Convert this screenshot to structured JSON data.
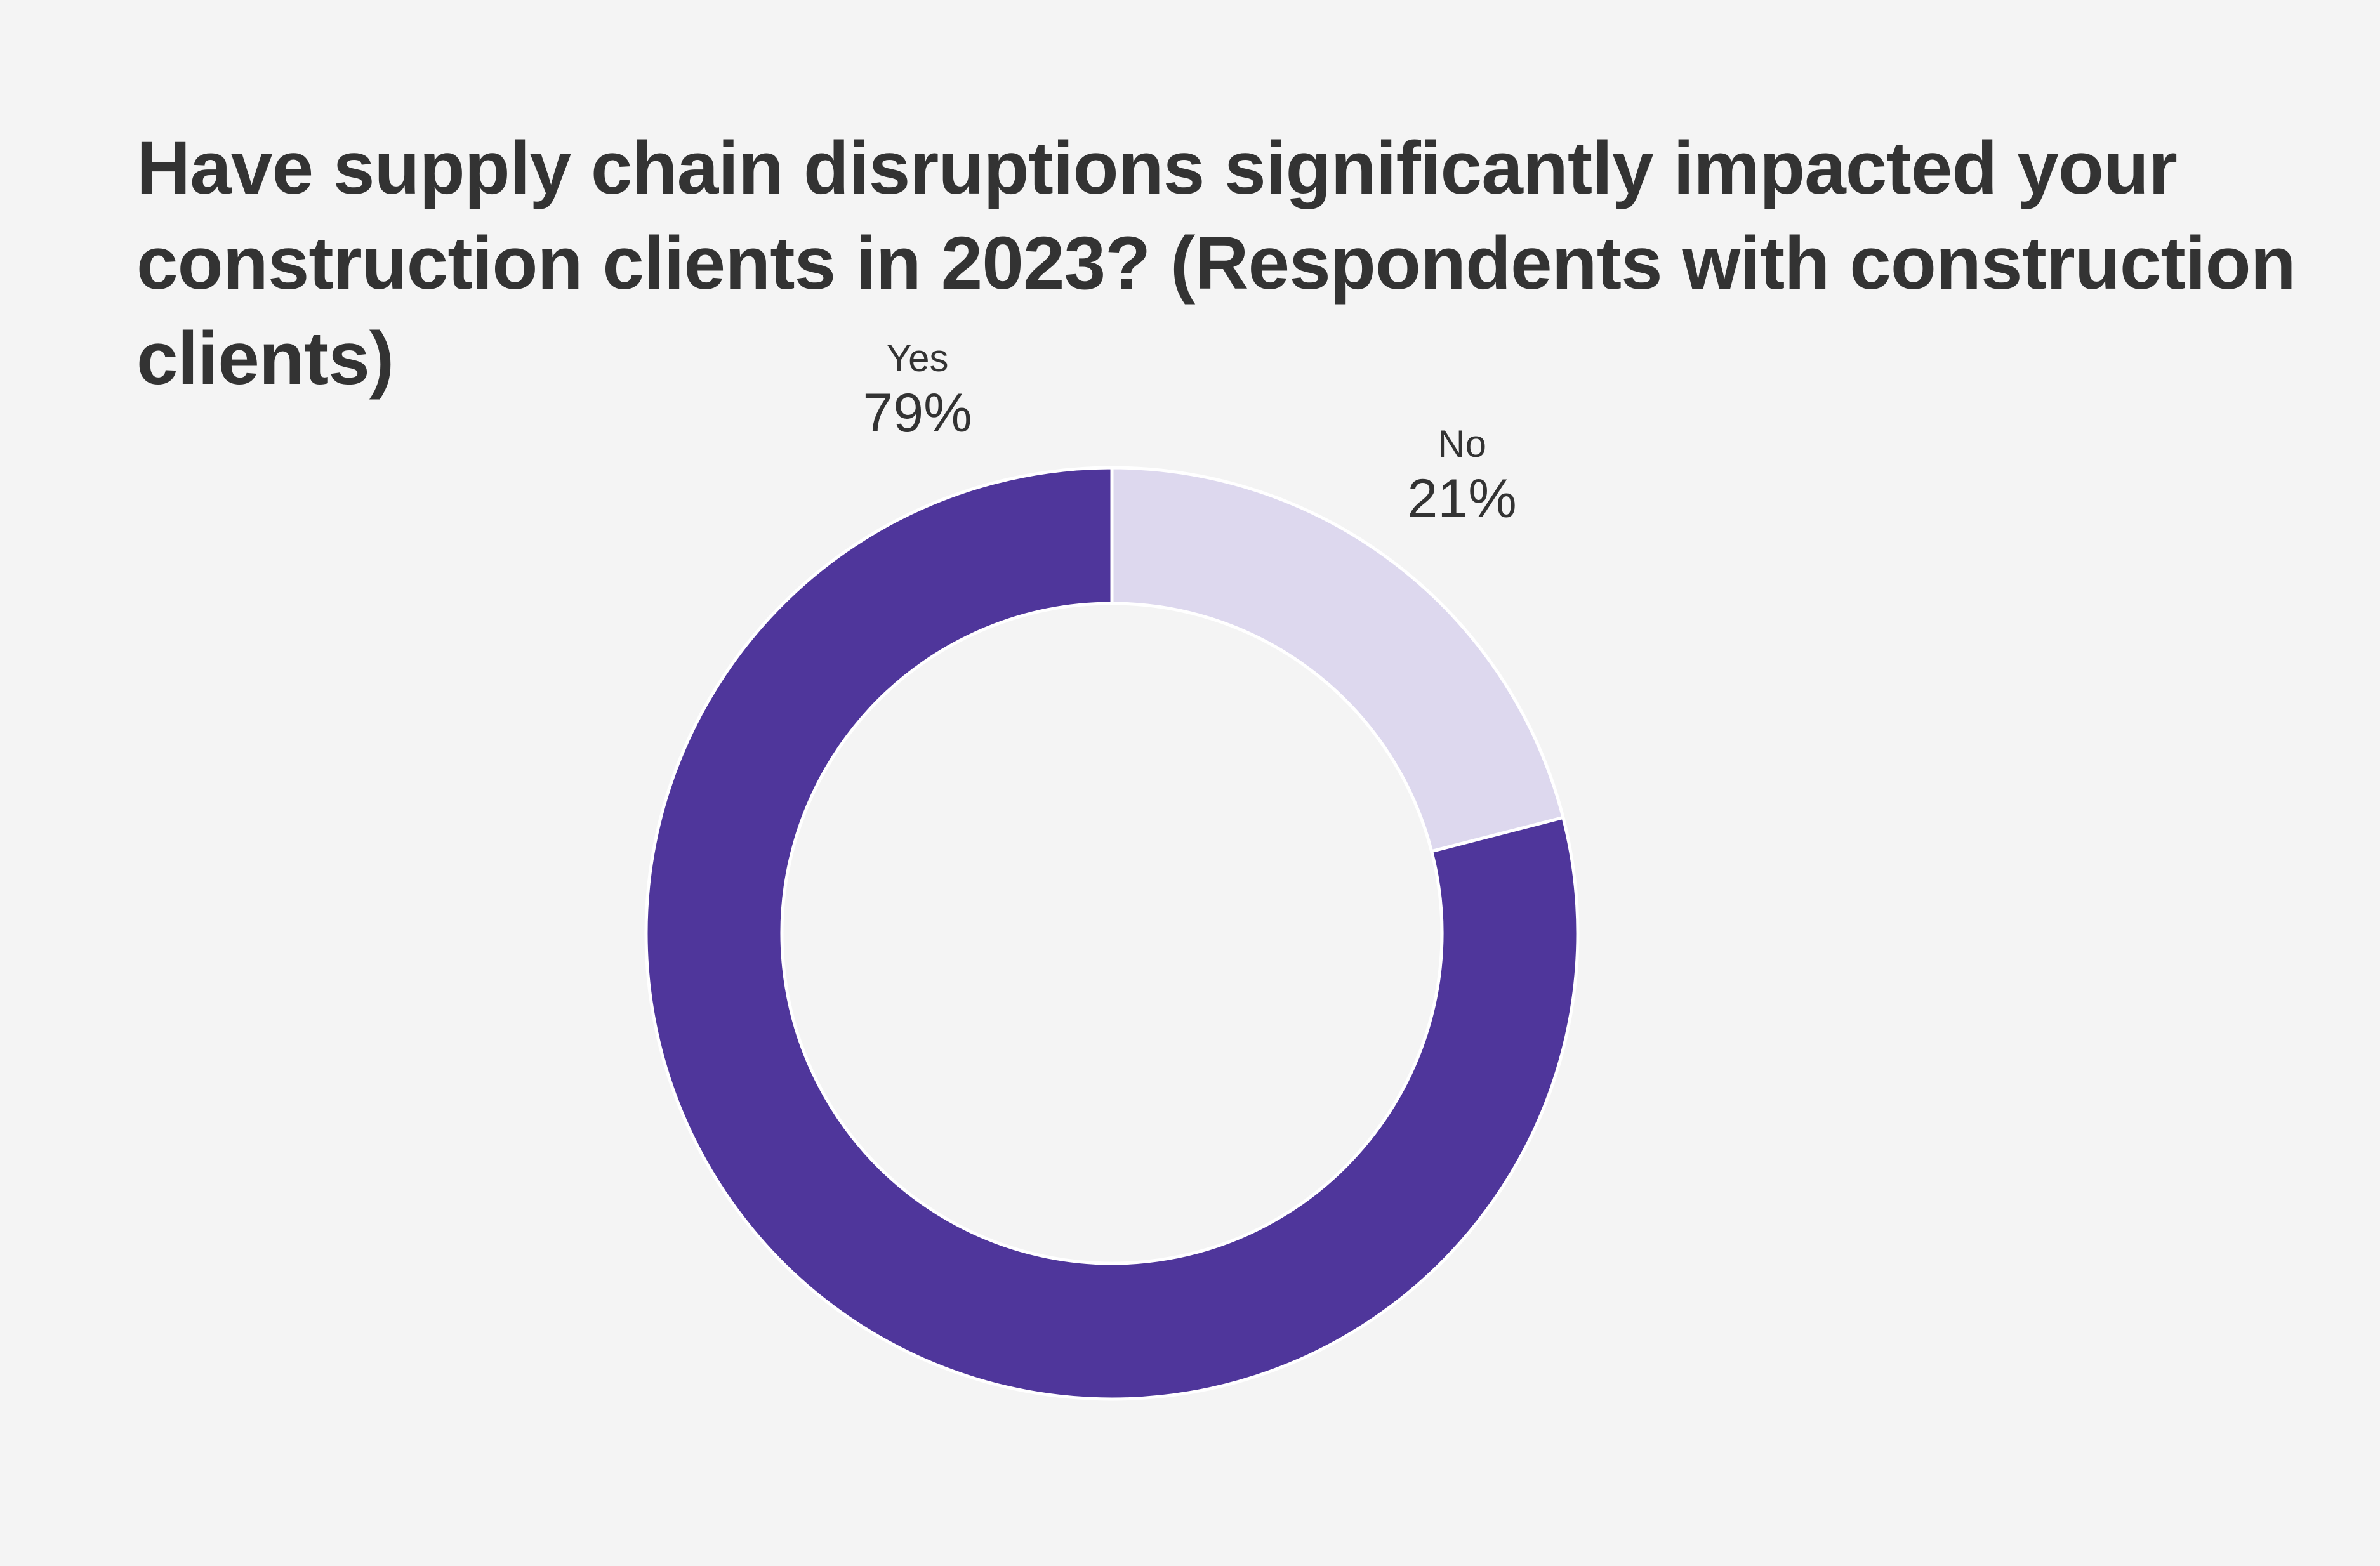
{
  "chart_data": {
    "type": "pie",
    "style": "donut",
    "title": "Have supply chain disruptions significantly impacted your construction clients in 2023? (Respondents with construction clients)",
    "slices": [
      {
        "label": "No",
        "value": 21,
        "value_label": "21%",
        "color": "#ddd8ee"
      },
      {
        "label": "Yes",
        "value": 79,
        "value_label": "79%",
        "color": "#4f369b"
      }
    ],
    "start_angle": "12 o'clock",
    "direction": "clockwise",
    "legend": "none"
  },
  "colors": {
    "background": "#f4f4f4",
    "text": "#333333",
    "separator": "#ffffff"
  }
}
